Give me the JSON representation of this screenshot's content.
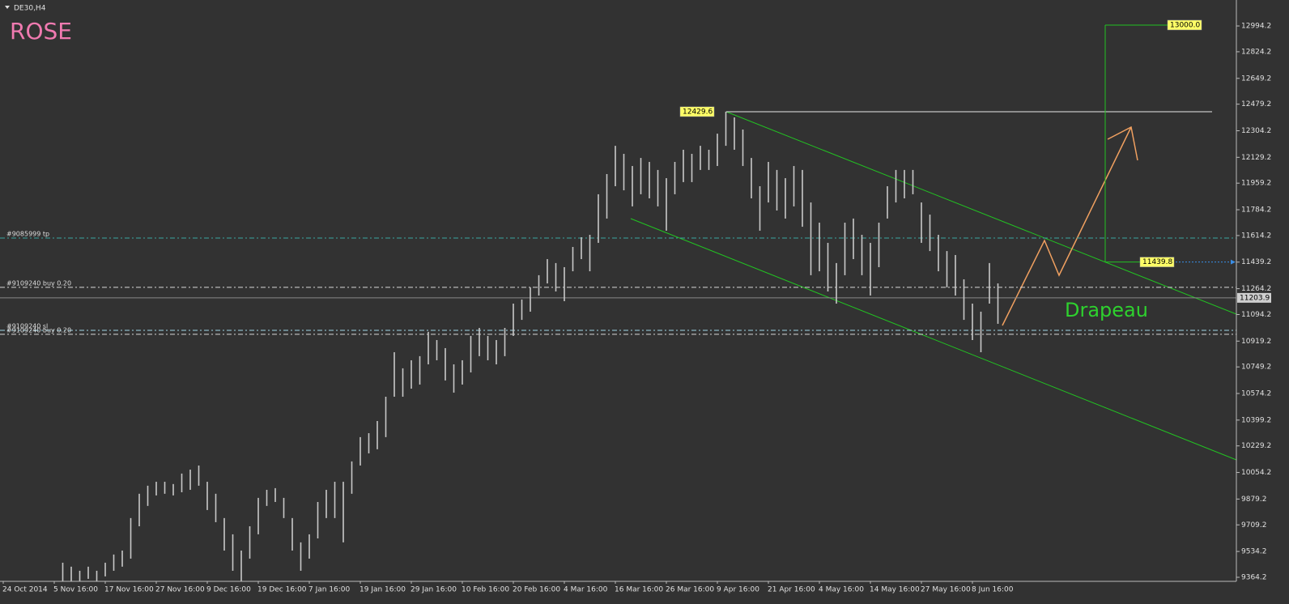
{
  "chart_data": {
    "type": "hl-bar",
    "title": "DE30,H4",
    "label": "ROSE",
    "pattern_label": "Drapeau",
    "color": "#c8c8c8",
    "categories": [
      "24 Oct 2014",
      null,
      null,
      null,
      null,
      null,
      "5 Nov 16:00",
      null,
      null,
      null,
      null,
      null,
      "17 Nov 16:00",
      null,
      null,
      null,
      null,
      null,
      "27 Nov 16:00",
      null,
      null,
      null,
      null,
      null,
      "9 Dec 16:00",
      null,
      null,
      null,
      null,
      null,
      "19 Dec 16:00",
      null,
      null,
      null,
      null,
      null,
      "7 Jan 16:00",
      null,
      null,
      null,
      null,
      null,
      "19 Jan 16:00",
      null,
      null,
      null,
      null,
      null,
      "29 Jan 16:00",
      null,
      null,
      null,
      null,
      null,
      "10 Feb 16:00",
      null,
      null,
      null,
      null,
      null,
      "20 Feb 16:00",
      null,
      null,
      null,
      null,
      null,
      "4 Mar 16:00",
      null,
      null,
      null,
      null,
      null,
      "16 Mar 16:00",
      null,
      null,
      null,
      null,
      null,
      "26 Mar 16:00",
      null,
      null,
      null,
      null,
      null,
      "9 Apr 16:00",
      null,
      null,
      null,
      null,
      null,
      "21 Apr 16:00",
      null,
      null,
      null,
      null,
      null,
      "4 May 16:00",
      null,
      null,
      null,
      null,
      null,
      "14 May 16:00",
      null,
      null,
      null,
      null,
      null,
      "27 May 16:00",
      null,
      null,
      null,
      null,
      null,
      "8 Jun 16:00",
      null,
      null,
      null
    ],
    "high": [
      null,
      null,
      null,
      null,
      null,
      null,
      null,
      9460,
      9434,
      9407,
      9434,
      9407,
      9460,
      9514,
      9540,
      9754,
      9914,
      9967,
      9993,
      9993,
      9978,
      10047,
      10073,
      10100,
      9993,
      9914,
      9754,
      9647,
      9540,
      9700,
      9887,
      9940,
      9951,
      9887,
      9754,
      9594,
      9647,
      9860,
      9940,
      9993,
      9993,
      10127,
      10287,
      10313,
      10393,
      10553,
      10846,
      10740,
      10793,
      10820,
      10980,
      10926,
      10873,
      10766,
      10793,
      10953,
      11006,
      10953,
      10926,
      11006,
      11166,
      11193,
      11273,
      11353,
      11459,
      11433,
      11406,
      11539,
      11603,
      11619,
      11886,
      12019,
      12205,
      12152,
      12072,
      12125,
      12099,
      12046,
      11992,
      12099,
      12179,
      12152,
      12205,
      12179,
      12285,
      12430,
      12392,
      12312,
      12125,
      11939,
      12099,
      12046,
      11992,
      12072,
      12046,
      11832,
      11699,
      11566,
      11433,
      11699,
      11726,
      11619,
      11566,
      11699,
      11939,
      12046,
      12046,
      12046,
      11832,
      11752,
      11619,
      11512,
      11486,
      11326,
      11166,
      11113,
      11433,
      11299
    ],
    "low": [
      null,
      null,
      null,
      null,
      null,
      null,
      null,
      9327,
      9338,
      9327,
      9354,
      9327,
      9370,
      9407,
      9434,
      9487,
      9700,
      9834,
      9903,
      9914,
      9903,
      9924,
      9940,
      9967,
      9807,
      9727,
      9540,
      9407,
      9327,
      9487,
      9647,
      9834,
      9860,
      9754,
      9540,
      9407,
      9487,
      9620,
      9754,
      9754,
      9594,
      9914,
      10100,
      10180,
      10207,
      10287,
      10553,
      10553,
      10606,
      10633,
      10766,
      10793,
      10660,
      10580,
      10633,
      10713,
      10820,
      10793,
      10766,
      10820,
      10953,
      11059,
      11113,
      11219,
      11299,
      11246,
      11182,
      11379,
      11459,
      11379,
      11566,
      11726,
      11939,
      11912,
      11806,
      11886,
      11859,
      11806,
      11646,
      11886,
      11966,
      11966,
      12046,
      12046,
      12072,
      12205,
      12179,
      12072,
      11859,
      11646,
      11832,
      11779,
      11726,
      11806,
      11672,
      11353,
      11379,
      11246,
      11166,
      11353,
      11459,
      11353,
      11219,
      11406,
      11726,
      11832,
      11859,
      11886,
      11566,
      11512,
      11379,
      11273,
      11219,
      11059,
      10926,
      10846,
      11166,
      11033
    ],
    "ylim": [
      9337.5,
      13165
    ],
    "yticks": [
      12994.2,
      12824.2,
      12649.2,
      12479.2,
      12304.2,
      12129.2,
      11959.2,
      11784.2,
      11614.2,
      11439.2,
      11264.2,
      11094.2,
      10919.2,
      10749.2,
      10574.2,
      10399.2,
      10229.2,
      10054.2,
      9879.2,
      9709.2,
      9534.2,
      9364.2
    ],
    "current_price": 11203.9,
    "price_labels": [
      12429.6,
      {
        "value": 13000,
        "label": "13000.0"
      },
      11439.8
    ],
    "order_lines": [
      {
        "label": "#9085999 tp",
        "value": 11598,
        "color": "#3aa6a0"
      },
      {
        "label": "#9109240 buy 0.20",
        "value": 11273,
        "color": "#d8d8d8"
      },
      {
        "label": "#9109240 sl",
        "value": 10990,
        "color": "#9fd6e6"
      },
      {
        "label": "#9109240 buy 0.20",
        "value": 10964,
        "color": "#d8d8d8"
      }
    ]
  }
}
